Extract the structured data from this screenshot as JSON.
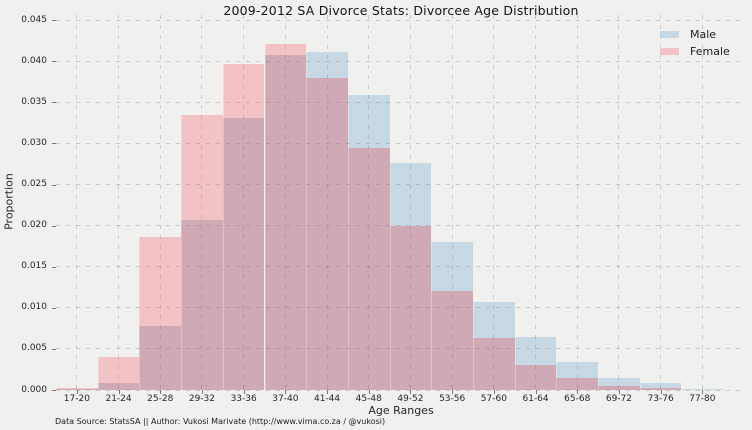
{
  "chart_data": {
    "type": "bar",
    "subtype": "overlapping-histogram",
    "title": "2009-2012 SA Divorce Stats: Divorcee Age Distribution",
    "xlabel": "Age Ranges",
    "ylabel": "Proportion",
    "footnote": "Data Source: StatsSA || Author: Vukosi Marivate (http://www.vima.co.za / @vukosi)",
    "categories": [
      "17-20",
      "21-24",
      "25-28",
      "29-32",
      "33-36",
      "37-40",
      "41-44",
      "45-48",
      "49-52",
      "53-56",
      "57-60",
      "61-64",
      "65-68",
      "69-72",
      "73-76",
      "77-80"
    ],
    "series": [
      {
        "name": "Male",
        "color": "#c6d8e4",
        "values": [
          0.0001,
          0.0008,
          0.0078,
          0.0207,
          0.0331,
          0.0408,
          0.0411,
          0.0359,
          0.0276,
          0.018,
          0.0107,
          0.0065,
          0.0034,
          0.0015,
          0.0008,
          0.0001
        ]
      },
      {
        "name": "Female",
        "color": "#f3c2c5",
        "values": [
          0.0002,
          0.004,
          0.0186,
          0.0334,
          0.0397,
          0.0421,
          0.038,
          0.0294,
          0.02,
          0.012,
          0.0063,
          0.003,
          0.0014,
          0.0005,
          0.0002,
          0.0
        ]
      }
    ],
    "overlap_color": "#cfaab5",
    "background_color": "#f0f0ee",
    "grid": "dashed",
    "legend_position": "upper right",
    "ylim": [
      0.0,
      0.045
    ],
    "yticks": [
      "0.000",
      "0.005",
      "0.010",
      "0.015",
      "0.020",
      "0.025",
      "0.030",
      "0.035",
      "0.040",
      "0.045"
    ]
  }
}
